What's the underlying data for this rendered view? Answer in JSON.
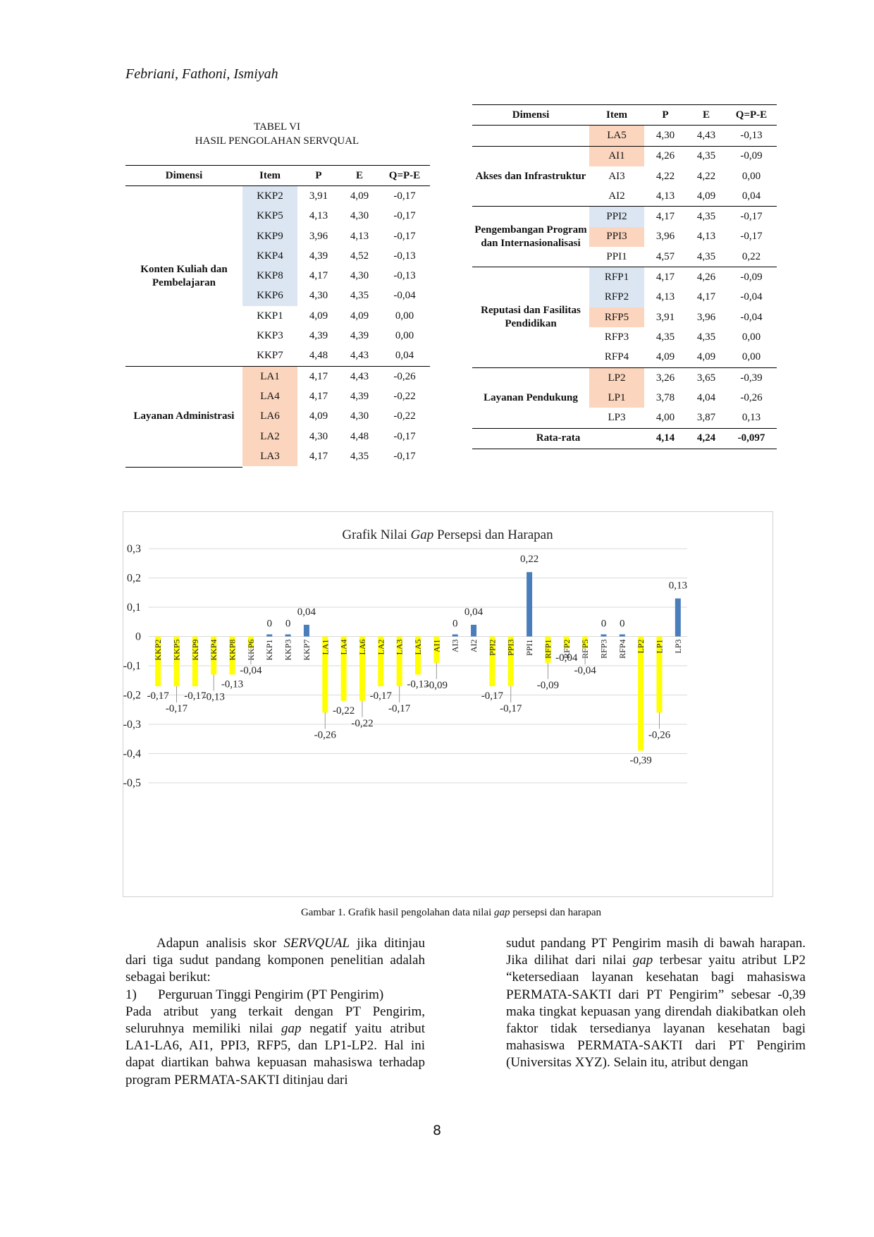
{
  "header": {
    "authors": "Febriani, Fathoni, Ismiyah"
  },
  "table_left": {
    "caption_line1": "TABEL VI",
    "caption_line2": "HASIL PENGOLAHAN SERVQUAL",
    "columns": [
      "Dimensi",
      "Item",
      "P",
      "E",
      "Q=P-E"
    ],
    "groups": [
      {
        "name": "Konten Kuliah dan Pembelajaran",
        "rows": [
          {
            "item": "KKP2",
            "p": "3,91",
            "e": "4,09",
            "q": "-0,17",
            "color": "blue"
          },
          {
            "item": "KKP5",
            "p": "4,13",
            "e": "4,30",
            "q": "-0,17",
            "color": "blue"
          },
          {
            "item": "KKP9",
            "p": "3,96",
            "e": "4,13",
            "q": "-0,17",
            "color": "blue"
          },
          {
            "item": "KKP4",
            "p": "4,39",
            "e": "4,52",
            "q": "-0,13",
            "color": "blue"
          },
          {
            "item": "KKP8",
            "p": "4,17",
            "e": "4,30",
            "q": "-0,13",
            "color": "blue"
          },
          {
            "item": "KKP6",
            "p": "4,30",
            "e": "4,35",
            "q": "-0,04",
            "color": "blue"
          },
          {
            "item": "KKP1",
            "p": "4,09",
            "e": "4,09",
            "q": "0,00",
            "color": ""
          },
          {
            "item": "KKP3",
            "p": "4,39",
            "e": "4,39",
            "q": "0,00",
            "color": ""
          },
          {
            "item": "KKP7",
            "p": "4,48",
            "e": "4,43",
            "q": "0,04",
            "color": ""
          }
        ]
      },
      {
        "name": "Layanan Administrasi",
        "rows": [
          {
            "item": "LA1",
            "p": "4,17",
            "e": "4,43",
            "q": "-0,26",
            "color": "orange"
          },
          {
            "item": "LA4",
            "p": "4,17",
            "e": "4,39",
            "q": "-0,22",
            "color": "orange"
          },
          {
            "item": "LA6",
            "p": "4,09",
            "e": "4,30",
            "q": "-0,22",
            "color": "orange"
          },
          {
            "item": "LA2",
            "p": "4,30",
            "e": "4,48",
            "q": "-0,17",
            "color": "orange"
          },
          {
            "item": "LA3",
            "p": "4,17",
            "e": "4,35",
            "q": "-0,17",
            "color": "orange"
          }
        ]
      }
    ]
  },
  "table_right": {
    "columns": [
      "Dimensi",
      "Item",
      "P",
      "E",
      "Q=P-E"
    ],
    "groups": [
      {
        "name": "",
        "rows": [
          {
            "item": "LA5",
            "p": "4,30",
            "e": "4,43",
            "q": "-0,13",
            "color": "orange"
          }
        ]
      },
      {
        "name": "Akses dan Infrastruktur",
        "rows": [
          {
            "item": "AI1",
            "p": "4,26",
            "e": "4,35",
            "q": "-0,09",
            "color": "orange"
          },
          {
            "item": "AI3",
            "p": "4,22",
            "e": "4,22",
            "q": "0,00",
            "color": ""
          },
          {
            "item": "AI2",
            "p": "4,13",
            "e": "4,09",
            "q": "0,04",
            "color": ""
          }
        ]
      },
      {
        "name": "Pengembangan Program dan Internasionalisasi",
        "rows": [
          {
            "item": "PPI2",
            "p": "4,17",
            "e": "4,35",
            "q": "-0,17",
            "color": "blue"
          },
          {
            "item": "PPI3",
            "p": "3,96",
            "e": "4,13",
            "q": "-0,17",
            "color": "orange"
          },
          {
            "item": "PPI1",
            "p": "4,57",
            "e": "4,35",
            "q": "0,22",
            "color": ""
          }
        ]
      },
      {
        "name": "Reputasi dan Fasilitas Pendidikan",
        "rows": [
          {
            "item": "RFP1",
            "p": "4,17",
            "e": "4,26",
            "q": "-0,09",
            "color": "blue"
          },
          {
            "item": "RFP2",
            "p": "4,13",
            "e": "4,17",
            "q": "-0,04",
            "color": "blue"
          },
          {
            "item": "RFP5",
            "p": "3,91",
            "e": "3,96",
            "q": "-0,04",
            "color": "orange"
          },
          {
            "item": "RFP3",
            "p": "4,35",
            "e": "4,35",
            "q": "0,00",
            "color": ""
          },
          {
            "item": "RFP4",
            "p": "4,09",
            "e": "4,09",
            "q": "0,00",
            "color": ""
          }
        ]
      },
      {
        "name": "Layanan Pendukung",
        "rows": [
          {
            "item": "LP2",
            "p": "3,26",
            "e": "3,65",
            "q": "-0,39",
            "color": "orange"
          },
          {
            "item": "LP1",
            "p": "3,78",
            "e": "4,04",
            "q": "-0,26",
            "color": "orange"
          },
          {
            "item": "LP3",
            "p": "4,00",
            "e": "3,87",
            "q": "0,13",
            "color": ""
          }
        ]
      }
    ],
    "average": {
      "label": "Rata-rata",
      "p": "4,14",
      "e": "4,24",
      "q": "-0,097"
    }
  },
  "chart_data": {
    "type": "bar",
    "title_prefix": "Grafik Nilai ",
    "title_italic": "Gap",
    "title_suffix": " Persepsi dan Harapan",
    "categories": [
      "KKP2",
      "KKP5",
      "KKP9",
      "KKP4",
      "KKP8",
      "KKP6",
      "KKP1",
      "KKP3",
      "KKP7",
      "LA1",
      "LA4",
      "LA6",
      "LA2",
      "LA3",
      "LA5",
      "AI1",
      "AI3",
      "AI2",
      "PPI2",
      "PPI3",
      "PPI1",
      "RFP1",
      "RFP2",
      "RFP5",
      "RFP3",
      "RFP4",
      "LP2",
      "LP1",
      "LP3"
    ],
    "values": [
      -0.17,
      -0.17,
      -0.17,
      -0.13,
      -0.13,
      -0.04,
      0,
      0,
      0.04,
      -0.26,
      -0.22,
      -0.22,
      -0.17,
      -0.17,
      -0.13,
      -0.09,
      0,
      0.04,
      -0.17,
      -0.17,
      0.22,
      -0.09,
      -0.04,
      -0.04,
      0,
      0,
      -0.39,
      -0.26,
      0.13
    ],
    "value_labels": [
      "-0,17",
      "-0,17",
      "-0,17",
      "-0,13",
      "-0,13",
      "-0,04",
      "0",
      "0",
      "0,04",
      "-0,26",
      "-0,22",
      "-0,22",
      "-0,17",
      "-0,17",
      "-0,13",
      "-0,09",
      "0",
      "0,04",
      "-0,17",
      "-0,17",
      "0,22",
      "-0,09",
      "-0,04",
      "-0,04",
      "0",
      "0",
      "-0,39",
      "-0,26",
      "0,13"
    ],
    "ylim": [
      -0.5,
      0.3
    ],
    "yticks": [
      0.3,
      0.2,
      0.1,
      0,
      -0.1,
      -0.2,
      -0.3,
      -0.4,
      -0.5
    ],
    "ytick_labels": [
      "0,3",
      "0,2",
      "0,1",
      "0",
      "-0,1",
      "-0,2",
      "-0,3",
      "-0,4",
      "-0,5"
    ],
    "grid": true,
    "colors": {
      "negative": "#ffff00",
      "positive": "#4a7ebb",
      "grid": "#d9d9d9"
    }
  },
  "figure_caption": {
    "before": "Gambar 1. Grafik hasil pengolahan data nilai ",
    "italic": "gap",
    "after": " persepsi dan harapan"
  },
  "body": {
    "left_intro_a": "Adapun analisis skor ",
    "left_intro_italic": "SERVQUAL",
    "left_intro_b": " jika ditinjau dari tiga sudut pandang komponen penelitian adalah sebagai berikut:",
    "list_number": "1)",
    "list_title": "Perguruan Tinggi Pengirim (PT Pengirim)",
    "list_body_a": "Pada atribut yang terkait dengan PT Pengirim, seluruhnya memiliki nilai ",
    "list_body_italic": "gap",
    "list_body_b": " negatif yaitu atribut LA1-LA6, AI1, PPI3, RFP5, dan LP1-LP2. Hal ini dapat diartikan bahwa kepuasan mahasiswa terhadap program PERMATA-SAKTI ditinjau dari",
    "right_a": "sudut pandang PT Pengirim masih di bawah harapan. Jika dilihat dari nilai ",
    "right_italic": "gap",
    "right_b": " terbesar yaitu atribut LP2 “ketersediaan layanan kesehatan bagi mahasiswa PERMATA-SAKTI dari PT Pengirim” sebesar -0,39 maka tingkat kepuasan yang direndah diakibatkan oleh faktor tidak tersedianya layanan kesehatan bagi mahasiswa PERMATA-SAKTI dari PT Pengirim (Universitas XYZ). Selain itu, atribut dengan"
  },
  "page_number": "8"
}
